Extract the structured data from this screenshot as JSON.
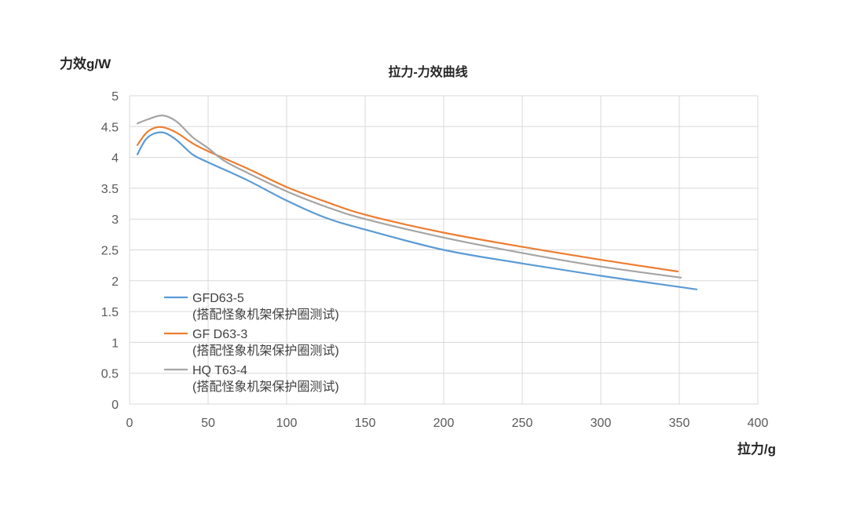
{
  "chart_data": {
    "type": "line",
    "title": "拉力-力效曲线",
    "xlabel": "拉力/g",
    "ylabel": "力效g/W",
    "xlim": [
      0,
      400
    ],
    "ylim": [
      0,
      5
    ],
    "x_ticks": [
      "0",
      "50",
      "100",
      "150",
      "200",
      "250",
      "300",
      "350",
      "400"
    ],
    "y_ticks": [
      "0",
      "0.5",
      "1",
      "1.5",
      "2",
      "2.5",
      "3",
      "3.5",
      "4",
      "4.5",
      "5"
    ],
    "grid": true,
    "legend_position": "lower-left",
    "series": [
      {
        "name": "GFD63-5",
        "name_line2": "(搭配怪象机架保护圈测试)",
        "color": "#5B9BD5",
        "points": [
          [
            5,
            4.05
          ],
          [
            10,
            4.28
          ],
          [
            15,
            4.38
          ],
          [
            22,
            4.4
          ],
          [
            30,
            4.28
          ],
          [
            40,
            4.05
          ],
          [
            50,
            3.92
          ],
          [
            75,
            3.63
          ],
          [
            100,
            3.3
          ],
          [
            125,
            3.02
          ],
          [
            150,
            2.83
          ],
          [
            200,
            2.5
          ],
          [
            250,
            2.28
          ],
          [
            300,
            2.08
          ],
          [
            350,
            1.9
          ],
          [
            361,
            1.86
          ]
        ]
      },
      {
        "name": "GF D63-3",
        "name_line2": "(搭配怪象机架保护圈测试)",
        "color": "#ED7D31",
        "points": [
          [
            5,
            4.2
          ],
          [
            10,
            4.38
          ],
          [
            15,
            4.47
          ],
          [
            21,
            4.49
          ],
          [
            30,
            4.4
          ],
          [
            40,
            4.23
          ],
          [
            50,
            4.1
          ],
          [
            75,
            3.82
          ],
          [
            100,
            3.52
          ],
          [
            125,
            3.28
          ],
          [
            150,
            3.07
          ],
          [
            200,
            2.78
          ],
          [
            250,
            2.55
          ],
          [
            300,
            2.34
          ],
          [
            349,
            2.15
          ]
        ]
      },
      {
        "name": "HQ T63-4",
        "name_line2": "(搭配怪象机架保护圈测试)",
        "color": "#A5A5A5",
        "points": [
          [
            5,
            4.55
          ],
          [
            12,
            4.62
          ],
          [
            21,
            4.68
          ],
          [
            30,
            4.58
          ],
          [
            40,
            4.33
          ],
          [
            50,
            4.15
          ],
          [
            60,
            3.95
          ],
          [
            75,
            3.75
          ],
          [
            100,
            3.45
          ],
          [
            125,
            3.2
          ],
          [
            150,
            3.0
          ],
          [
            200,
            2.7
          ],
          [
            250,
            2.45
          ],
          [
            300,
            2.23
          ],
          [
            351,
            2.05
          ]
        ]
      }
    ]
  }
}
